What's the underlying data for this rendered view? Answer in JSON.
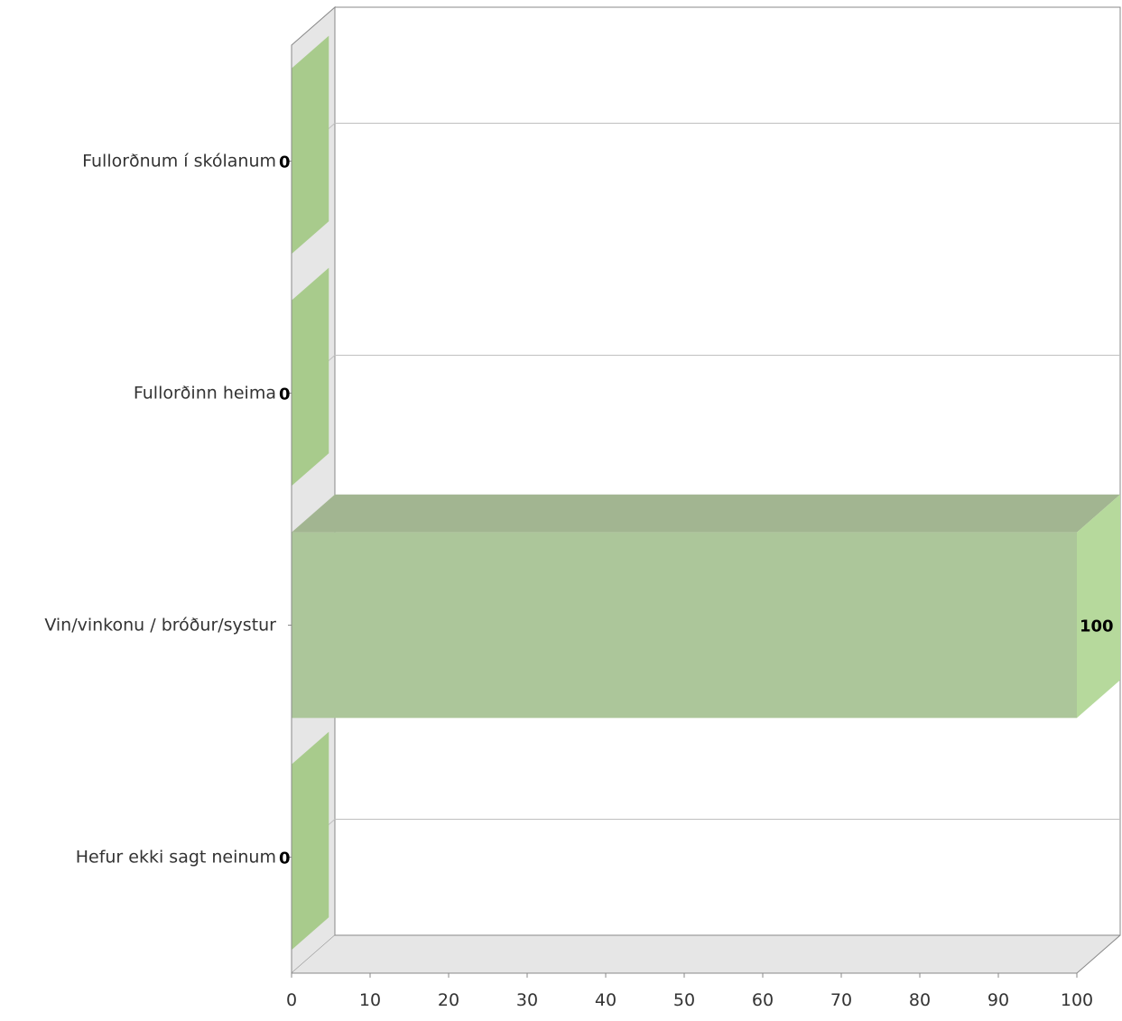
{
  "chart_data": {
    "type": "bar",
    "orientation": "horizontal",
    "style": "3d",
    "categories": [
      "Fullorðnum í skólanum",
      "Fullorðinn heima",
      "Vin/vinkonu / bróður/systur",
      "Hefur ekki sagt neinum"
    ],
    "values": [
      0,
      0,
      100,
      0
    ],
    "value_labels": [
      "0",
      "0",
      "100",
      "0"
    ],
    "x_ticks": [
      "0",
      "10",
      "20",
      "30",
      "40",
      "50",
      "60",
      "70",
      "80",
      "90",
      "100"
    ],
    "xlim": [
      0,
      100
    ],
    "title": "",
    "xlabel": "",
    "ylabel": "",
    "grid": true,
    "legend": "none",
    "colors": {
      "bar_front": "#acc69a",
      "bar_top": "#a2b591",
      "bar_side": "#b6d99c",
      "zero_bar": "#a8cb8c",
      "wall": "#e6e6e6",
      "gridline": "#c0c0c0",
      "axis": "#888888",
      "text": "#333333",
      "label": "#000000"
    }
  }
}
